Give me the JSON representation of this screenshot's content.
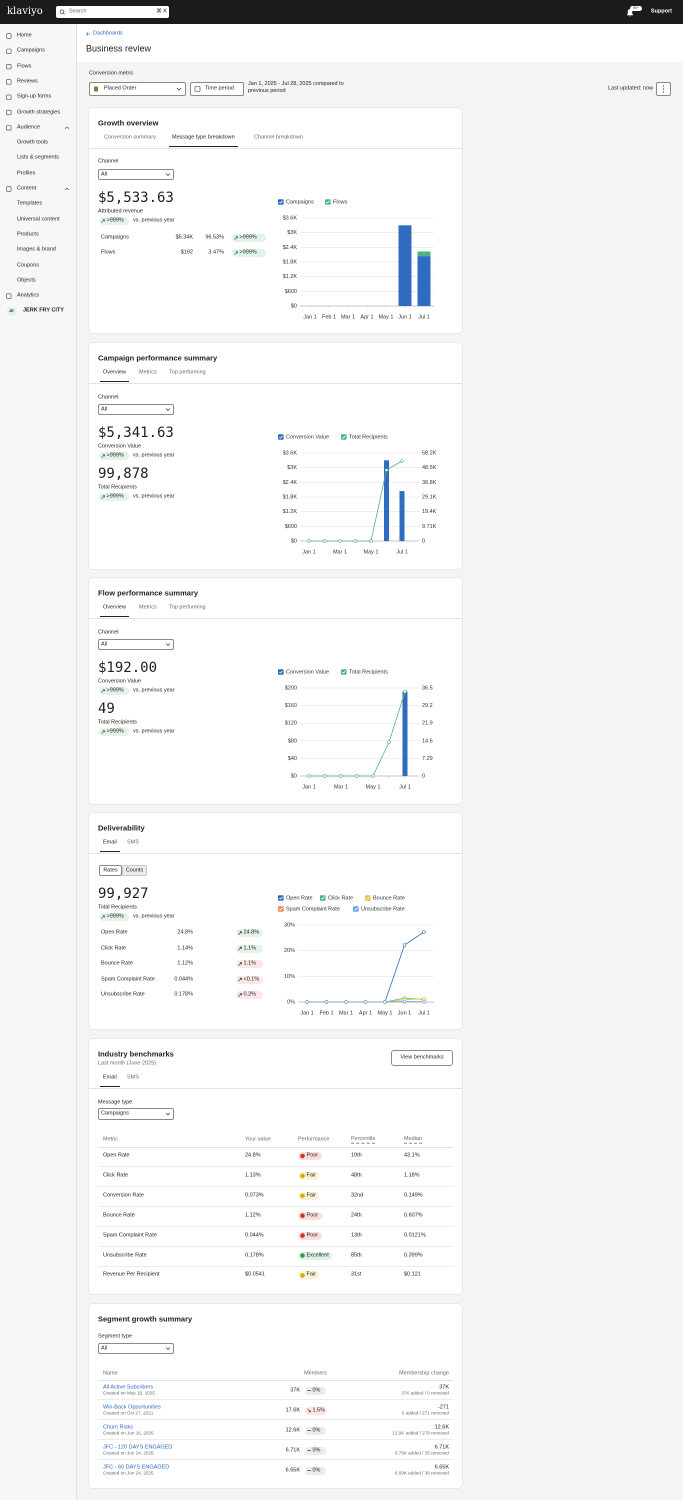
{
  "topbar": {
    "logo": "klaviyo",
    "search": "Search",
    "shortcut": "⌘ K",
    "notifications": "99+",
    "support": "Support"
  },
  "nav": [
    {
      "label": "Home"
    },
    {
      "label": "Campaigns"
    },
    {
      "label": "Flows"
    },
    {
      "label": "Reviews"
    },
    {
      "label": "Sign-up forms"
    },
    {
      "label": "Growth strategies"
    },
    {
      "label": "Audience",
      "children": [
        "Growth tools",
        "Lists & segments",
        "Profiles"
      ]
    },
    {
      "label": "Content",
      "children": [
        "Templates",
        "Universal content",
        "Products",
        "Images & brand",
        "Coupons",
        "Objects"
      ]
    },
    {
      "label": "Analytics"
    }
  ],
  "account": {
    "initials": "JE",
    "name": "JERK FRY CITY"
  },
  "header": {
    "breadcrumb": "Dashboards",
    "title": "Business review"
  },
  "filters": {
    "metric_label": "Conversion metric",
    "metric": "Placed Order",
    "time_button": "Time period",
    "range": "Jan 1, 2025 - Jul 28, 2025 compared to previous period",
    "updated": "Last updated: now"
  },
  "growth_overview": {
    "title": "Growth overview",
    "tabs": [
      "Conversion summary",
      "Message type breakdown",
      "Channel breakdown"
    ],
    "active_tab": 1,
    "channel_label": "Channel",
    "channel": "All",
    "kpi": "$5,533.63",
    "kpi_label": "Attributed revenue",
    "change": ">999%",
    "change_label": "vs. previous year",
    "rows": [
      {
        "name": "Campaigns",
        "value": "$5.34K",
        "share": "96.53%",
        "change": ">999%"
      },
      {
        "name": "Flows",
        "value": "$192",
        "share": "3.47%",
        "change": ">999%"
      }
    ],
    "chart": {
      "type": "bar",
      "stacked": true,
      "grid": true,
      "categories": [
        "Jan 1",
        "Feb 1",
        "Mar 1",
        "Apr 1",
        "May 1",
        "Jun 1",
        "Jul 1"
      ],
      "series": [
        {
          "name": "Campaigns",
          "color": "#2f6bbf",
          "values": [
            0,
            0,
            0,
            0,
            0,
            3300,
            2040
          ]
        },
        {
          "name": "Flows",
          "color": "#4fb482",
          "values": [
            0,
            0,
            0,
            0,
            0,
            0,
            192
          ]
        }
      ],
      "ylim": [
        0,
        3600
      ],
      "yticks": [
        {
          "value": 0,
          "label": "$0"
        },
        {
          "value": 600,
          "label": "$600"
        },
        {
          "value": 1200,
          "label": "$1.2K"
        },
        {
          "value": 1800,
          "label": "$1.8K"
        },
        {
          "value": 2400,
          "label": "$2.4K"
        },
        {
          "value": 3000,
          "label": "$3K"
        },
        {
          "value": 3600,
          "label": "$3.6K"
        }
      ]
    }
  },
  "campaign_performance": {
    "title": "Campaign performance summary",
    "tabs": [
      "Overview",
      "Metrics",
      "Top performing"
    ],
    "active_tab": 0,
    "channel_label": "Channel",
    "channel": "All",
    "kpis": [
      {
        "value": "$5,341.63",
        "label": "Conversion Value",
        "change": ">999%",
        "change_label": "vs. previous year"
      },
      {
        "value": "99,878",
        "label": "Total Recipients",
        "change": ">999%",
        "change_label": "vs. previous year"
      }
    ],
    "chart": {
      "type": "combo",
      "grid": true,
      "categories": [
        "Jan 1",
        null,
        "Mar 1",
        null,
        "May 1",
        null,
        "Jul 1"
      ],
      "series": [
        {
          "name": "Conversion Value",
          "type": "bar",
          "color": "#2f6bbf",
          "values": [
            0,
            0,
            0,
            0,
            0,
            3300,
            2041
          ]
        },
        {
          "name": "Total Recipients",
          "type": "line",
          "axis": "y2",
          "color": "#4fb482",
          "values": [
            0,
            0,
            0,
            0,
            0,
            46900,
            52900
          ]
        }
      ],
      "ylim": [
        0,
        3600
      ],
      "yticks": [
        {
          "value": 0,
          "label": "$0"
        },
        {
          "value": 600,
          "label": "$600"
        },
        {
          "value": 1200,
          "label": "$1.2K"
        },
        {
          "value": 1800,
          "label": "$1.8K"
        },
        {
          "value": 2400,
          "label": "$2.4K"
        },
        {
          "value": 3000,
          "label": "$3K"
        },
        {
          "value": 3600,
          "label": "$3.6K"
        }
      ],
      "y2lim": [
        0,
        58200
      ],
      "y2ticks": [
        0,
        {
          "value": 9710,
          "label": "9.71K"
        },
        {
          "value": 19400,
          "label": "19.4K"
        },
        {
          "value": 29100,
          "label": "29.1K"
        },
        {
          "value": 38800,
          "label": "38.8K"
        },
        {
          "value": 48500,
          "label": "48.5K"
        },
        {
          "value": 58200,
          "label": "58.2K"
        }
      ]
    }
  },
  "flow_performance": {
    "title": "Flow performance summary",
    "tabs": [
      "Overview",
      "Metrics",
      "Top performing"
    ],
    "active_tab": 0,
    "channel_label": "Channel",
    "channel": "All",
    "kpis": [
      {
        "value": "$192.00",
        "label": "Conversion Value",
        "change": ">999%",
        "change_label": "vs. previous year"
      },
      {
        "value": "49",
        "label": "Total Recipients",
        "change": ">999%",
        "change_label": "vs. previous year"
      }
    ],
    "chart": {
      "type": "combo",
      "grid": true,
      "categories": [
        "Jan 1",
        null,
        "Mar 1",
        null,
        "May 1",
        null,
        "Jul 1"
      ],
      "series": [
        {
          "name": "Conversion Value",
          "type": "bar",
          "color": "#2f6bbf",
          "values": [
            0,
            0,
            0,
            0,
            0,
            0,
            192
          ]
        },
        {
          "name": "Total Recipients",
          "type": "line",
          "axis": "y2",
          "color": "#4fb482",
          "values": [
            0,
            0,
            0,
            0,
            0,
            14,
            35
          ]
        }
      ],
      "ylim": [
        0,
        200
      ],
      "yticks": [
        {
          "value": 0,
          "label": "$0"
        },
        {
          "value": 40,
          "label": "$40"
        },
        {
          "value": 80,
          "label": "$80"
        },
        {
          "value": 120,
          "label": "$120"
        },
        {
          "value": 160,
          "label": "$160"
        },
        {
          "value": 200,
          "label": "$200"
        }
      ],
      "y2lim": [
        0,
        36.5
      ],
      "y2ticks": [
        0,
        7.29,
        14.6,
        21.9,
        29.2,
        36.5
      ]
    }
  },
  "deliverability": {
    "title": "Deliverability",
    "tabs": [
      "Email",
      "SMS"
    ],
    "active_tab": 0,
    "toggle": [
      "Rates",
      "Counts"
    ],
    "kpi": "99,927",
    "kpi_label": "Total Recipients",
    "change": ">999%",
    "change_label": "vs. previous year",
    "rows": [
      {
        "name": "Open Rate",
        "value": "24.8%",
        "change": "24.8%",
        "change_color": "#e2f3e7"
      },
      {
        "name": "Click Rate",
        "value": "1.14%",
        "change": "1.1%",
        "change_color": "#e2f3e7"
      },
      {
        "name": "Bounce Rate",
        "value": "1.12%",
        "change": "1.1%",
        "change_color": "#fbe7e7"
      },
      {
        "name": "Spam Complaint Rate",
        "value": "0.044%",
        "change": "<0.1%",
        "change_color": "#fbe7e7"
      },
      {
        "name": "Unsubscribe Rate",
        "value": "0.178%",
        "change": "0.2%",
        "change_color": "#fbe7e7"
      }
    ],
    "chart": {
      "type": "line",
      "grid": true,
      "categories": [
        "Jan 1",
        "Feb 1",
        "Mar 1",
        "Apr 1",
        "May 1",
        "Jun 1",
        "Jul 1"
      ],
      "series": [
        {
          "name": "Open Rate",
          "color": "#2f6bbf",
          "values": [
            0,
            0,
            0,
            0,
            0,
            22.2,
            27.3
          ]
        },
        {
          "name": "Click Rate",
          "color": "#4fb482",
          "values": [
            0,
            0,
            0,
            0,
            0,
            1.5,
            1.0
          ]
        },
        {
          "name": "Bounce Rate",
          "color": "#e9c23b",
          "values": [
            0,
            0,
            0,
            0,
            0,
            0.9,
            1.3
          ]
        },
        {
          "name": "Spam Complaint Rate",
          "color": "#ea8a4c",
          "values": [
            0,
            0,
            0,
            0,
            0,
            0.05,
            0.04
          ]
        },
        {
          "name": "Unsubscribe Rate",
          "color": "#62a8e6",
          "values": [
            0,
            0,
            0,
            0,
            0,
            0.2,
            0.15
          ]
        }
      ],
      "ylim": [
        0,
        30
      ],
      "yticks": [
        {
          "value": 0,
          "label": "0%"
        },
        {
          "value": 10,
          "label": "10%"
        },
        {
          "value": 20,
          "label": "20%"
        },
        {
          "value": 30,
          "label": "30%"
        }
      ]
    }
  },
  "benchmarks": {
    "title": "Industry benchmarks",
    "subtitle": "Last month (June 2025)",
    "button": "View benchmarks",
    "tabs": [
      "Email",
      "SMS"
    ],
    "active_tab": 0,
    "message_type_label": "Message type",
    "message_type": "Campaigns",
    "columns": [
      "Metric",
      "Your value",
      "Performance",
      "Percentile",
      "Median"
    ],
    "rows": [
      {
        "metric": "Open Rate",
        "value": "24.8%",
        "performance": "Poor",
        "performance_color": "#d93025",
        "percentile": "10th",
        "median": "43.1%"
      },
      {
        "metric": "Click Rate",
        "value": "1.13%",
        "performance": "Fair",
        "performance_color": "#e0a800",
        "percentile": "48th",
        "median": "1.18%"
      },
      {
        "metric": "Conversion Rate",
        "value": "0.073%",
        "performance": "Fair",
        "performance_color": "#e0a800",
        "percentile": "32nd",
        "median": "0.149%"
      },
      {
        "metric": "Bounce Rate",
        "value": "1.12%",
        "performance": "Poor",
        "performance_color": "#d93025",
        "percentile": "24th",
        "median": "0.607%"
      },
      {
        "metric": "Spam Complaint Rate",
        "value": "0.044%",
        "performance": "Poor",
        "performance_color": "#d93025",
        "percentile": "13th",
        "median": "0.0121%"
      },
      {
        "metric": "Unsubscribe Rate",
        "value": "0.178%",
        "performance": "Excellent",
        "performance_color": "#2e9e4f",
        "percentile": "85th",
        "median": "0.399%"
      },
      {
        "metric": "Revenue Per Recipient",
        "value": "$0.0541",
        "performance": "Fair",
        "performance_color": "#e0a800",
        "percentile": "31st",
        "median": "$0.121"
      }
    ]
  },
  "segments": {
    "title": "Segment growth summary",
    "segment_type_label": "Segment type",
    "segment_type": "All",
    "columns": [
      "Name",
      "Members",
      "Membership change"
    ],
    "rows": [
      {
        "name": "All Active Subcribers",
        "created": "Created on May 19, 2025",
        "members": "37K",
        "change": "0%",
        "trend": "flat",
        "change_color": "#ececec",
        "net": "37K",
        "detail": "37K added / 0 removed"
      },
      {
        "name": "Win-Back Opportunities",
        "created": "Created on Oct 27, 2021",
        "members": "17.6K",
        "change": "1.5%",
        "trend": "down",
        "change_color": "#fbe7e7",
        "net": "-271",
        "detail": "0 added / 271 removed"
      },
      {
        "name": "Churn Risks",
        "created": "Created on Jun 16, 2025",
        "members": "12.6K",
        "change": "0%",
        "trend": "flat",
        "change_color": "#ececec",
        "net": "12.6K",
        "detail": "12.9K added / 278 removed"
      },
      {
        "name": "JFC - 120 DAYS ENGAGED",
        "created": "Created on Jun 24, 2025",
        "members": "6.71K",
        "change": "0%",
        "trend": "flat",
        "change_color": "#ececec",
        "net": "6.71K",
        "detail": "6.75K added / 35 removed"
      },
      {
        "name": "JFC - 60 DAYS ENGAGED",
        "created": "Created on Jun 24, 2025",
        "members": "6.65K",
        "change": "0%",
        "trend": "flat",
        "change_color": "#ececec",
        "net": "6.65K",
        "detail": "6.69K added / 36 removed"
      }
    ]
  }
}
